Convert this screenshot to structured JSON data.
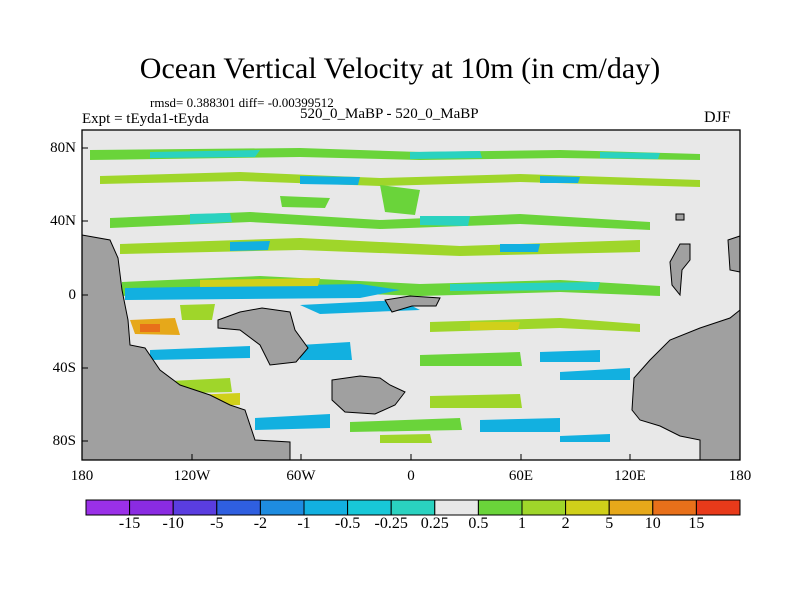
{
  "title": "Ocean Vertical Velocity at 10m (in cm/day)",
  "stats": "rmsd= 0.388301  diff= -0.00399512",
  "expt": "Expt = tEyda1-tEyda",
  "case_line": "520_0_MaBP - 520_0_MaBP",
  "season": "DJF",
  "lat_labels": [
    "80N",
    "40N",
    "0",
    "40S",
    "80S"
  ],
  "lon_labels": [
    "180",
    "120W",
    "60W",
    "0",
    "60E",
    "120E",
    "180"
  ],
  "colorbar": {
    "labels": [
      "-15",
      "-10",
      "-5",
      "-2",
      "-1",
      "-0.5",
      "-0.25",
      "0.25",
      "0.5",
      "1",
      "2",
      "5",
      "10",
      "15"
    ],
    "colors": [
      "#8a2be2",
      "#5a3de0",
      "#2f5fe0",
      "#1e8ce0",
      "#12b0e0",
      "#18c8d8",
      "#2ad2c0",
      "#e8e8e8",
      "#6ad43a",
      "#9fd62a",
      "#d0d01a",
      "#e6a81a",
      "#e8701a",
      "#e83a1a"
    ]
  },
  "land_color": "#a0a0a0",
  "ocean_color": "#e8e8e8"
}
